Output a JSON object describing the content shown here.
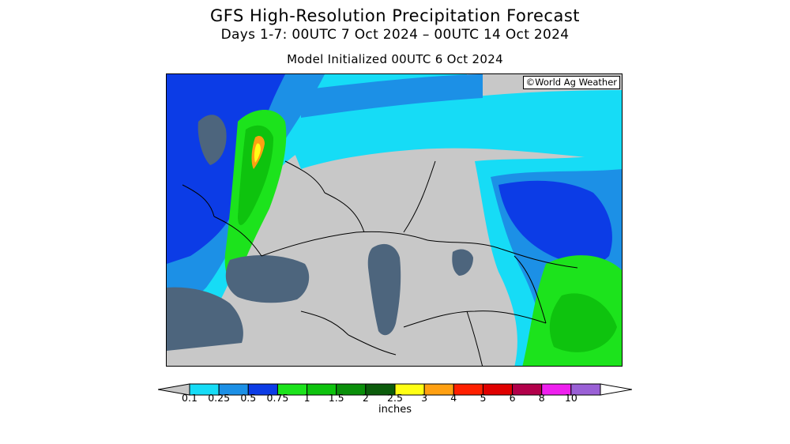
{
  "header": {
    "title": "GFS High-Resolution Precipitation Forecast",
    "subtitle": "Days 1-7: 00UTC 7 Oct 2024 – 00UTC 14 Oct 2024",
    "init": "Model Initialized 00UTC 6 Oct 2024"
  },
  "map": {
    "region": "Europe, Black Sea, Caspian Sea and Central Asia",
    "copyright": "©World Ag Weather",
    "colors": {
      "land_no_precip": "#c8c8c8",
      "water": "#4d657d",
      "border": "#000000"
    }
  },
  "legend": {
    "units": "inches",
    "ticks": [
      "0.1",
      "0.25",
      "0.5",
      "0.75",
      "1",
      "1.5",
      "2",
      "2.5",
      "3",
      "4",
      "5",
      "6",
      "8",
      "10"
    ],
    "colors": [
      "#16dcf6",
      "#1c90e6",
      "#0c3ce6",
      "#1ce31c",
      "#0ec30e",
      "#0a8f0a",
      "#0c5c0c",
      "#ffff14",
      "#ffa012",
      "#ff2000",
      "#e00000",
      "#b2004a",
      "#ee20ee",
      "#9a60d6"
    ]
  }
}
